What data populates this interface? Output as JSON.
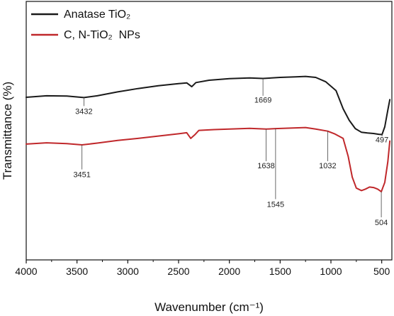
{
  "chart_data": {
    "type": "line",
    "title": "",
    "xlabel": "Wavenumber (cm⁻¹)",
    "ylabel": "Transmittance (%)",
    "xlim": [
      4000,
      400
    ],
    "ylim": [
      0,
      100
    ],
    "x_ticks": [
      4000,
      3500,
      3000,
      2500,
      2000,
      1500,
      1000,
      500
    ],
    "grid": false,
    "legend_position": "top-left",
    "series": [
      {
        "name": "Anatase TiO₂",
        "color": "#1a1a1a",
        "points": [
          [
            4000,
            62.9
          ],
          [
            3800,
            63.5
          ],
          [
            3600,
            63.4
          ],
          [
            3432,
            62.8
          ],
          [
            3300,
            63.5
          ],
          [
            3100,
            65.0
          ],
          [
            2900,
            66.3
          ],
          [
            2700,
            67.4
          ],
          [
            2500,
            68.2
          ],
          [
            2420,
            68.5
          ],
          [
            2370,
            67.0
          ],
          [
            2330,
            68.6
          ],
          [
            2200,
            69.5
          ],
          [
            2000,
            70.1
          ],
          [
            1800,
            70.4
          ],
          [
            1669,
            70.2
          ],
          [
            1500,
            70.6
          ],
          [
            1350,
            70.8
          ],
          [
            1250,
            71.0
          ],
          [
            1150,
            70.6
          ],
          [
            1050,
            68.9
          ],
          [
            950,
            65.5
          ],
          [
            880,
            58.5
          ],
          [
            820,
            54.0
          ],
          [
            760,
            50.8
          ],
          [
            700,
            49.4
          ],
          [
            640,
            49.1
          ],
          [
            580,
            48.9
          ],
          [
            530,
            48.6
          ],
          [
            497,
            48.5
          ],
          [
            470,
            51.5
          ],
          [
            440,
            58.0
          ],
          [
            420,
            62.0
          ]
        ]
      },
      {
        "name": "C, N-TiO₂  NPs",
        "color": "#c0282b",
        "points": [
          [
            4000,
            44.8
          ],
          [
            3800,
            45.3
          ],
          [
            3600,
            45.0
          ],
          [
            3451,
            44.5
          ],
          [
            3300,
            45.2
          ],
          [
            3100,
            46.2
          ],
          [
            2900,
            47.0
          ],
          [
            2700,
            47.9
          ],
          [
            2500,
            48.8
          ],
          [
            2420,
            49.2
          ],
          [
            2380,
            47.0
          ],
          [
            2340,
            48.4
          ],
          [
            2300,
            50.1
          ],
          [
            2150,
            50.4
          ],
          [
            2000,
            50.6
          ],
          [
            1800,
            50.9
          ],
          [
            1638,
            50.6
          ],
          [
            1545,
            50.8
          ],
          [
            1400,
            51.0
          ],
          [
            1250,
            51.2
          ],
          [
            1150,
            50.6
          ],
          [
            1032,
            49.8
          ],
          [
            960,
            48.7
          ],
          [
            880,
            47.0
          ],
          [
            830,
            40.0
          ],
          [
            790,
            32.0
          ],
          [
            750,
            27.8
          ],
          [
            700,
            26.8
          ],
          [
            660,
            27.4
          ],
          [
            620,
            28.2
          ],
          [
            580,
            28.0
          ],
          [
            540,
            27.4
          ],
          [
            504,
            26.4
          ],
          [
            470,
            30.0
          ],
          [
            440,
            38.0
          ],
          [
            420,
            46.0
          ]
        ]
      }
    ],
    "annotations": [
      {
        "label": "3432",
        "x": 3432,
        "y_start": 62.8,
        "y_end": 59.5,
        "text_y": 56.5
      },
      {
        "label": "1669",
        "x": 1669,
        "y_start": 70.2,
        "y_end": 63.5,
        "text_y": 60.8
      },
      {
        "label": "497",
        "x": 497,
        "y_start": 48.5,
        "y_end": 47.8,
        "text_y": 45.4
      },
      {
        "label": "3451",
        "x": 3451,
        "y_start": 44.5,
        "y_end": 35.0,
        "text_y": 32.0
      },
      {
        "label": "1638",
        "x": 1638,
        "y_start": 50.6,
        "y_end": 38.2,
        "text_y": 35.5
      },
      {
        "label": "1545",
        "x": 1545,
        "y_start": 50.8,
        "y_end": 23.5,
        "text_y": 20.5
      },
      {
        "label": "1032",
        "x": 1032,
        "y_start": 49.8,
        "y_end": 38.2,
        "text_y": 35.5
      },
      {
        "label": "504",
        "x": 504,
        "y_start": 26.4,
        "y_end": 16.5,
        "text_y": 13.4
      }
    ]
  }
}
